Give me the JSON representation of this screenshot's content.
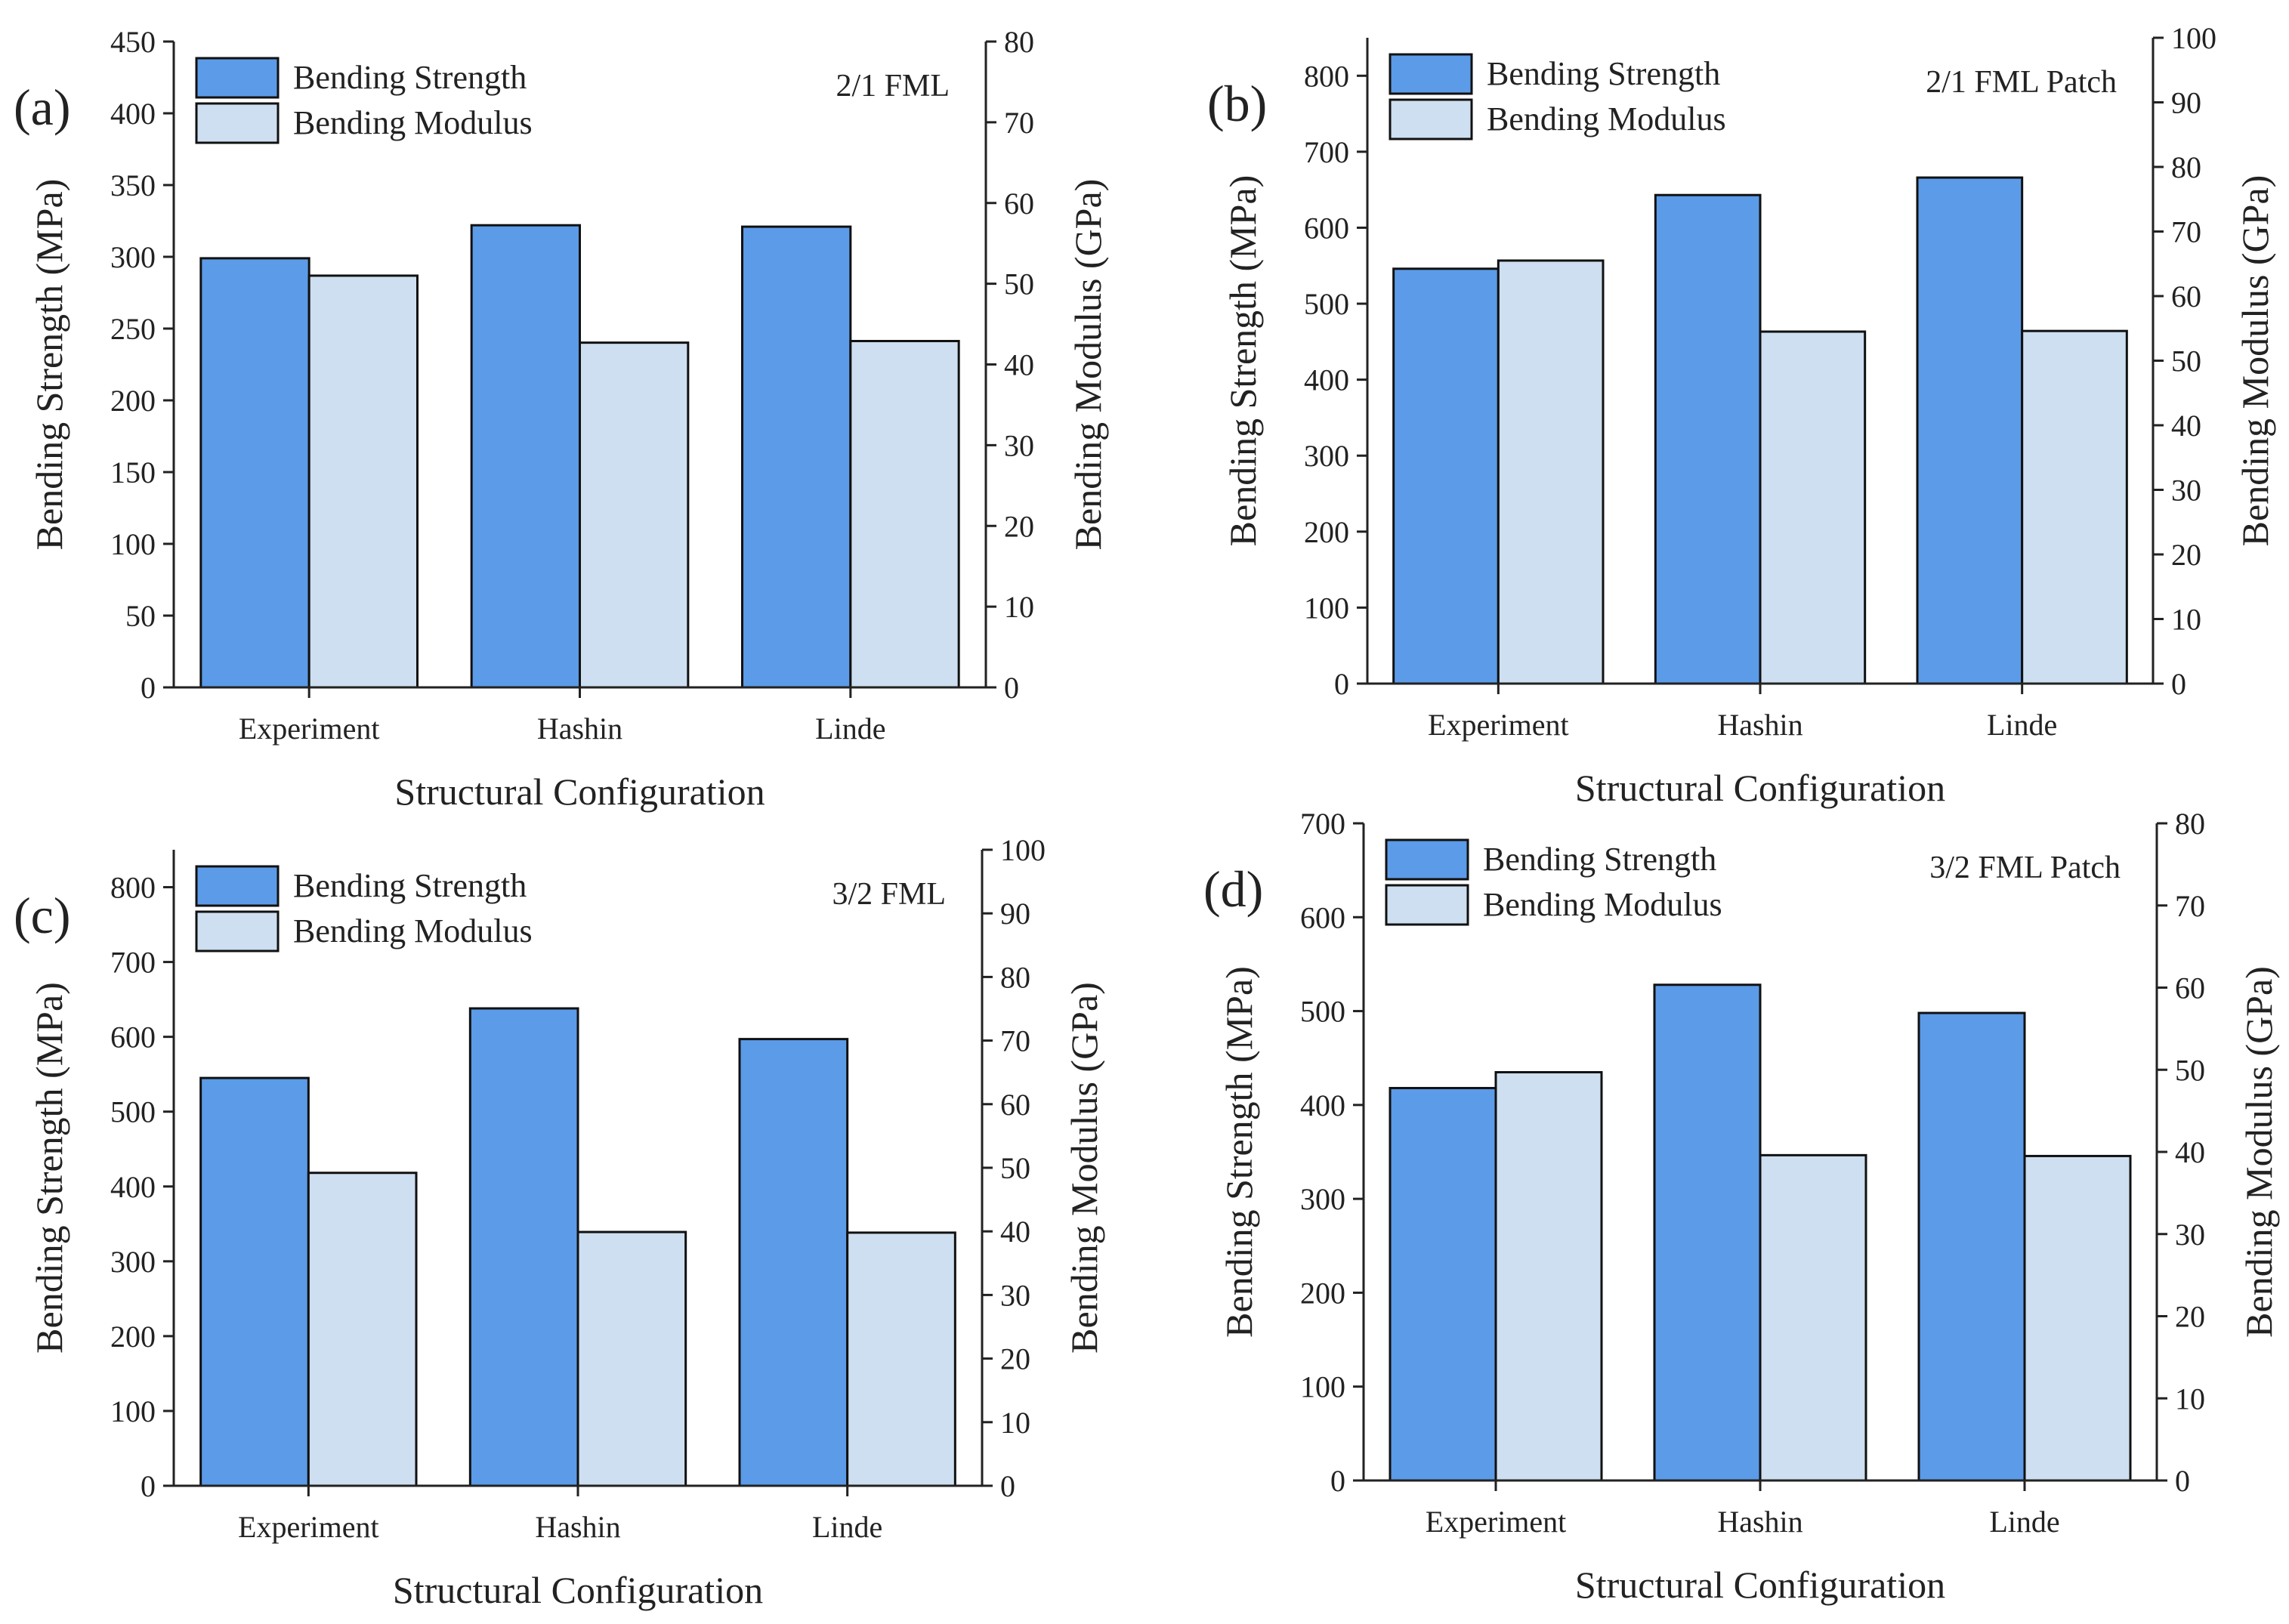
{
  "figure": {
    "colors": {
      "strength": "#5b9be8",
      "modulus": "#cddff0",
      "edge": "#111111",
      "axis": "#222222"
    }
  },
  "chart_data": [
    {
      "type": "bar",
      "tag": "(a)",
      "title": "2/1 FML",
      "xlabel": "Structural Configuration",
      "ylabel": "Bending Strength (MPa)",
      "y2label": "Bending Modulus (GPa)",
      "categories": [
        "Experiment",
        "Hashin",
        "Linde"
      ],
      "ylim": [
        0,
        450
      ],
      "yticks": [
        0,
        50,
        100,
        150,
        200,
        250,
        300,
        350,
        400,
        450
      ],
      "y2lim": [
        0,
        80
      ],
      "y2ticks": [
        0,
        10,
        20,
        30,
        40,
        50,
        60,
        70,
        80
      ],
      "legend": [
        "Bending Strength",
        "Bending Modulus"
      ],
      "series": [
        {
          "name": "Bending Strength",
          "axis": "left",
          "values": [
            299,
            322,
            321
          ]
        },
        {
          "name": "Bending Modulus",
          "axis": "right",
          "values": [
            51,
            42.7,
            42.9
          ]
        }
      ]
    },
    {
      "type": "bar",
      "tag": "(b)",
      "title": "2/1 FML Patch",
      "xlabel": "Structural Configuration",
      "ylabel": "Bending Strength (MPa)",
      "y2label": "Bending Modulus (GPa)",
      "categories": [
        "Experiment",
        "Hashin",
        "Linde"
      ],
      "ylim": [
        0,
        850
      ],
      "yticks": [
        0,
        100,
        200,
        300,
        400,
        500,
        600,
        700,
        800
      ],
      "y2lim": [
        0,
        100
      ],
      "y2ticks": [
        0,
        10,
        20,
        30,
        40,
        50,
        60,
        70,
        80,
        90,
        100
      ],
      "legend": [
        "Bending Strength",
        "Bending Modulus"
      ],
      "series": [
        {
          "name": "Bending Strength",
          "axis": "left",
          "values": [
            546,
            643,
            666
          ]
        },
        {
          "name": "Bending Modulus",
          "axis": "right",
          "values": [
            65.5,
            54.5,
            54.6
          ]
        }
      ]
    },
    {
      "type": "bar",
      "tag": "(c)",
      "title": "3/2 FML",
      "xlabel": "Structural Configuration",
      "ylabel": "Bending Strength (MPa)",
      "y2label": "Bending Modulus (GPa)",
      "categories": [
        "Experiment",
        "Hashin",
        "Linde"
      ],
      "ylim": [
        0,
        850
      ],
      "yticks": [
        0,
        100,
        200,
        300,
        400,
        500,
        600,
        700,
        800
      ],
      "y2lim": [
        0,
        100
      ],
      "y2ticks": [
        0,
        10,
        20,
        30,
        40,
        50,
        60,
        70,
        80,
        90,
        100
      ],
      "legend": [
        "Bending Strength",
        "Bending Modulus"
      ],
      "series": [
        {
          "name": "Bending Strength",
          "axis": "left",
          "values": [
            545,
            638,
            597
          ]
        },
        {
          "name": "Bending Modulus",
          "axis": "right",
          "values": [
            49.2,
            39.9,
            39.8
          ]
        }
      ]
    },
    {
      "type": "bar",
      "tag": "(d)",
      "title": "3/2 FML Patch",
      "xlabel": "Structural Configuration",
      "ylabel": "Bending Strength (MPa)",
      "y2label": "Bending Modulus (GPa)",
      "categories": [
        "Experiment",
        "Hashin",
        "Linde"
      ],
      "ylim": [
        0,
        700
      ],
      "yticks": [
        0,
        100,
        200,
        300,
        400,
        500,
        600,
        700
      ],
      "y2lim": [
        0,
        80
      ],
      "y2ticks": [
        0,
        10,
        20,
        30,
        40,
        50,
        60,
        70,
        80
      ],
      "legend": [
        "Bending Strength",
        "Bending Modulus"
      ],
      "series": [
        {
          "name": "Bending Strength",
          "axis": "left",
          "values": [
            418,
            528,
            498
          ]
        },
        {
          "name": "Bending Modulus",
          "axis": "right",
          "values": [
            49.7,
            39.6,
            39.5
          ]
        }
      ]
    }
  ]
}
